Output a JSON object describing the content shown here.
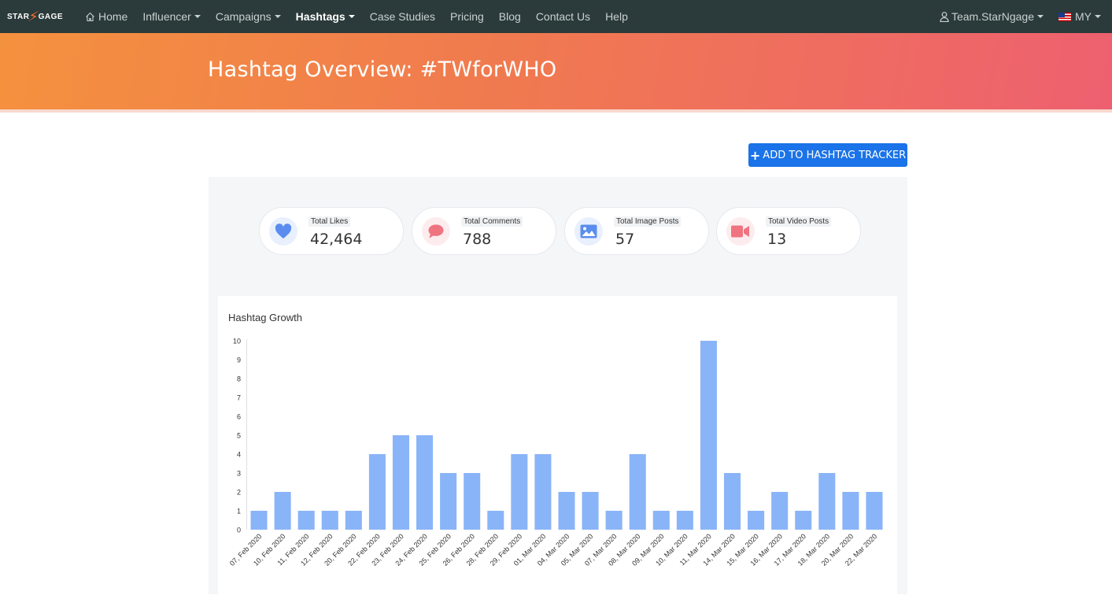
{
  "nav": {
    "logo_left": "STAR",
    "logo_right": "GAGE",
    "items": [
      {
        "label": "Home",
        "icon": "home-icon"
      },
      {
        "label": "Influencer",
        "dropdown": true
      },
      {
        "label": "Campaigns",
        "dropdown": true
      },
      {
        "label": "Hashtags",
        "dropdown": true,
        "active": true
      },
      {
        "label": "Case Studies"
      },
      {
        "label": "Pricing"
      },
      {
        "label": "Blog"
      },
      {
        "label": "Contact Us"
      },
      {
        "label": "Help"
      }
    ],
    "user": "Team.StarNgage",
    "country": "MY"
  },
  "banner": {
    "title": "Hashtag Overview: #TWforWHO"
  },
  "actions": {
    "add_tracker": "ADD TO HASHTAG TRACKER"
  },
  "stats": [
    {
      "label": "Total Likes",
      "value": "42,464",
      "icon": "heart-icon",
      "color": "#5a8dee",
      "bg": "#e9f0fd"
    },
    {
      "label": "Total Comments",
      "value": "788",
      "icon": "comment-icon",
      "color": "#f07380",
      "bg": "#fdecee"
    },
    {
      "label": "Total Image Posts",
      "value": "57",
      "icon": "image-icon",
      "color": "#5a8dee",
      "bg": "#e9f0fd"
    },
    {
      "label": "Total Video Posts",
      "value": "13",
      "icon": "video-icon",
      "color": "#f07380",
      "bg": "#fdecee"
    }
  ],
  "chart_title": "Hashtag Growth",
  "chart_data": {
    "type": "bar",
    "categories": [
      "07, Feb 2020",
      "10, Feb 2020",
      "11, Feb 2020",
      "12, Feb 2020",
      "20, Feb 2020",
      "22, Feb 2020",
      "23, Feb 2020",
      "24, Feb 2020",
      "25, Feb 2020",
      "26, Feb 2020",
      "28, Feb 2020",
      "29, Feb 2020",
      "01, Mar 2020",
      "04, Mar 2020",
      "05, Mar 2020",
      "07, Mar 2020",
      "08, Mar 2020",
      "09, Mar 2020",
      "10, Mar 2020",
      "11, Mar 2020",
      "14, Mar 2020",
      "15, Mar 2020",
      "16, Mar 2020",
      "17, Mar 2020",
      "18, Mar 2020",
      "20, Mar 2020",
      "22, Mar 2020"
    ],
    "values": [
      1,
      2,
      1,
      1,
      1,
      4,
      5,
      5,
      3,
      3,
      1,
      4,
      4,
      2,
      2,
      1,
      4,
      1,
      1,
      10,
      3,
      1,
      2,
      1,
      3,
      2,
      2
    ],
    "ylim": [
      0,
      10
    ],
    "yticks": [
      0,
      1,
      2,
      3,
      4,
      5,
      6,
      7,
      8,
      9,
      10
    ],
    "bar_color": "#8ab4f8",
    "grid": false
  }
}
